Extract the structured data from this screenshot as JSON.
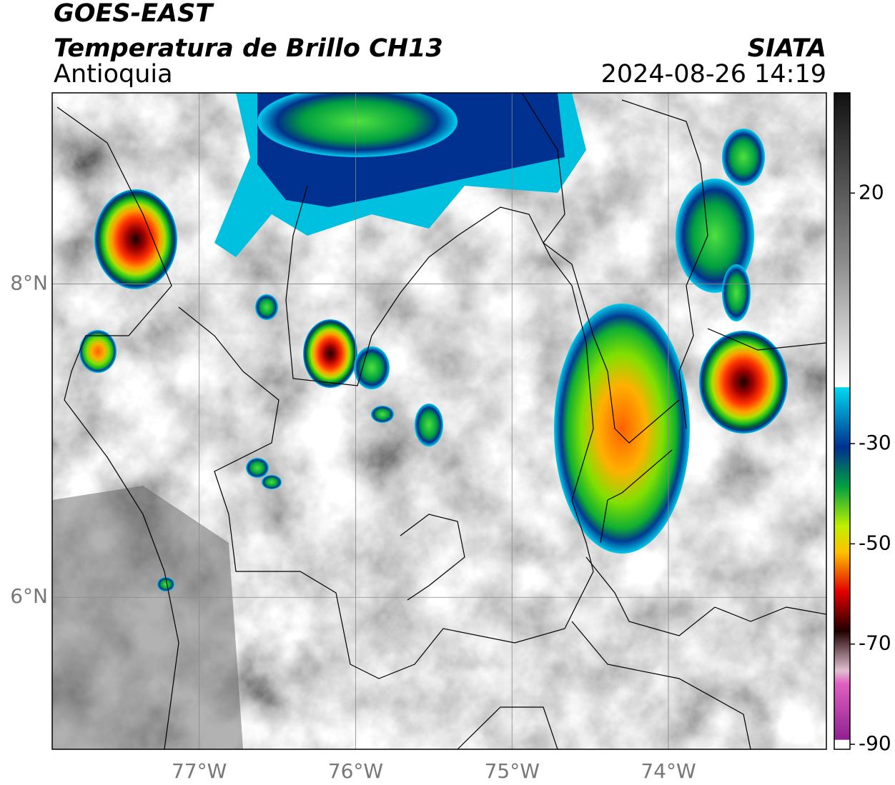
{
  "header": {
    "title": "GOES-EAST",
    "subtitle": "Temperatura de Brillo CH13",
    "region": "Antioquia",
    "source": "SIATA",
    "datetime": "2024-08-26 14:19"
  },
  "map": {
    "xlim": [
      -77.94,
      -72.99
    ],
    "ylim": [
      5.03,
      9.22
    ],
    "xticks": [
      {
        "value": -77,
        "label": "77°W"
      },
      {
        "value": -76,
        "label": "76°W"
      },
      {
        "value": -75,
        "label": "75°W"
      },
      {
        "value": -74,
        "label": "74°W"
      }
    ],
    "yticks": [
      {
        "value": 8,
        "label": "8°N"
      },
      {
        "value": 6,
        "label": "6°N"
      }
    ],
    "grid": true
  },
  "colorbar": {
    "lim": [
      -91,
      40
    ],
    "ticks": [
      20,
      -30,
      -50,
      -70,
      -90
    ]
  }
}
